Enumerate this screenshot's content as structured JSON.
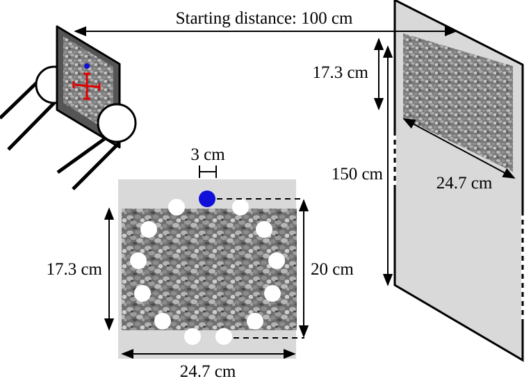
{
  "labels": {
    "starting_distance": "Starting distance: 100 cm",
    "screen_image_height": "17.3 cm",
    "screen_height": "150 cm",
    "screen_image_width": "24.7 cm",
    "dot_offset": "3 cm",
    "panel_image_height": "17.3 cm",
    "panel_height": "20 cm",
    "panel_width": "24.7 cm"
  },
  "colors": {
    "panel_gray": "#d9d9d9",
    "device_bezel": "#555555",
    "target_dot": "#1010d8",
    "reticle": "#e00000",
    "dot_white": "#ffffff",
    "gravel_dark": "#5b5b5b",
    "gravel_light": "#a8a8a8"
  },
  "dots": {
    "white_count": 12,
    "blue_count": 1
  }
}
